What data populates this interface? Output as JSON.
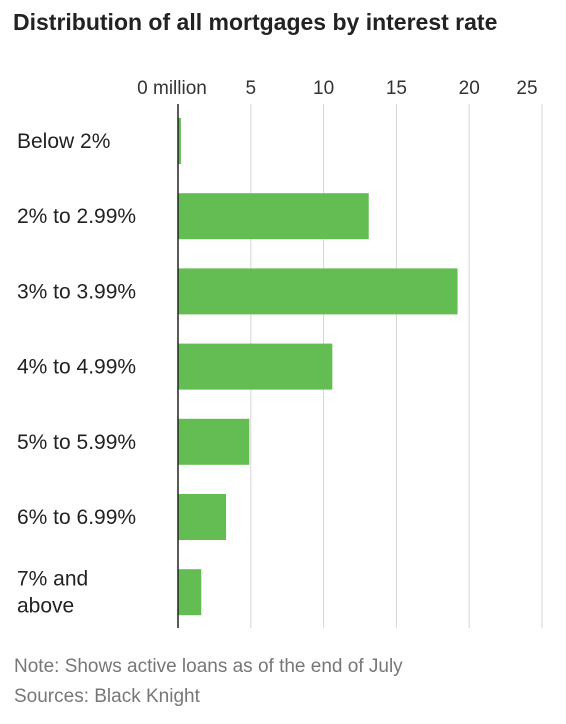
{
  "chart_data": {
    "type": "bar",
    "orientation": "horizontal",
    "title": "Distribution of all mortgages by interest rate",
    "categories": [
      [
        "Below 2%"
      ],
      [
        "2% to 2.99%"
      ],
      [
        "3% to 3.99%"
      ],
      [
        "4% to 4.99%"
      ],
      [
        "5% to 5.99%"
      ],
      [
        "6% to 6.99%"
      ],
      [
        "7% and",
        "above"
      ]
    ],
    "values": [
      0.2,
      13.1,
      19.2,
      10.6,
      4.9,
      3.3,
      1.6
    ],
    "units": "million",
    "xlim": [
      0,
      25
    ],
    "x_ticks": [
      0,
      5,
      10,
      15,
      20,
      25
    ],
    "x_tick_labels": [
      "0 million",
      "5",
      "10",
      "15",
      "20",
      "25"
    ],
    "x_axis_position": "top",
    "grid": true,
    "bar_color": "#63bd52",
    "gridline_color": "#d6d6d6",
    "zero_line_color": "#222222"
  },
  "footer": {
    "note": "Note: Shows active loans as of the end of July",
    "source": "Sources: Black Knight"
  }
}
